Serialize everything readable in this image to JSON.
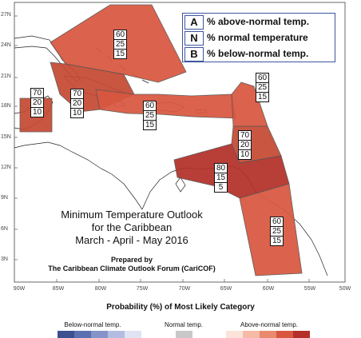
{
  "legend": {
    "rows": [
      {
        "key": "A",
        "text": "% above-normal temp."
      },
      {
        "key": "N",
        "text": "% normal temperature"
      },
      {
        "key": "B",
        "text": "% below-normal temp."
      }
    ],
    "border_color": "#3b55a0"
  },
  "title": {
    "line1": "Minimum Temperature Outlook",
    "line2": "for the Caribbean",
    "line3": "March - April - May 2016"
  },
  "credit": {
    "line1": "Prepared by",
    "line2": "The Caribbean Climate Outlook Forum (CariCOF)"
  },
  "axes": {
    "lat_labels": [
      "27N",
      "24N",
      "21N",
      "18N",
      "15N",
      "12N",
      "9N",
      "6N",
      "3N"
    ],
    "lon_labels": [
      "90W",
      "85W",
      "80W",
      "75W",
      "70W",
      "65W",
      "60W",
      "55W",
      "50W"
    ]
  },
  "regions": [
    {
      "name": "bahamas-north",
      "above": "60",
      "normal": "25",
      "below": "15"
    },
    {
      "name": "western-caribbean",
      "above": "70",
      "normal": "20",
      "below": "10"
    },
    {
      "name": "cuba-cayman",
      "above": "70",
      "normal": "20",
      "below": "10"
    },
    {
      "name": "greater-antilles",
      "above": "60",
      "normal": "25",
      "below": "15"
    },
    {
      "name": "northern-lesser-antilles",
      "above": "60",
      "normal": "25",
      "below": "15"
    },
    {
      "name": "central-lesser-antilles",
      "above": "70",
      "normal": "20",
      "below": "10"
    },
    {
      "name": "southern-caribbean",
      "above": "80",
      "normal": "15",
      "below": "5"
    },
    {
      "name": "guianas",
      "above": "60",
      "normal": "25",
      "below": "15"
    }
  ],
  "colorbar": {
    "title": "Probability (%) of Most Likely Category",
    "below_label": "Below-normal temp.",
    "normal_label": "Normal temp.",
    "above_label": "Above-normal temp.",
    "below_colors": [
      "#3c4f8f",
      "#5a70b0",
      "#8494c8",
      "#b3bde0",
      "#dfe3f2"
    ],
    "normal_color": "#c8c8c8",
    "above_colors": [
      "#fbe3da",
      "#f5bba6",
      "#e98a6f",
      "#d9573f",
      "#b3302a"
    ]
  },
  "colors": {
    "region_60": "#d9573f",
    "region_70": "#c44a33",
    "region_80": "#b3302a",
    "land": "#ffffff",
    "coast": "#222222"
  }
}
